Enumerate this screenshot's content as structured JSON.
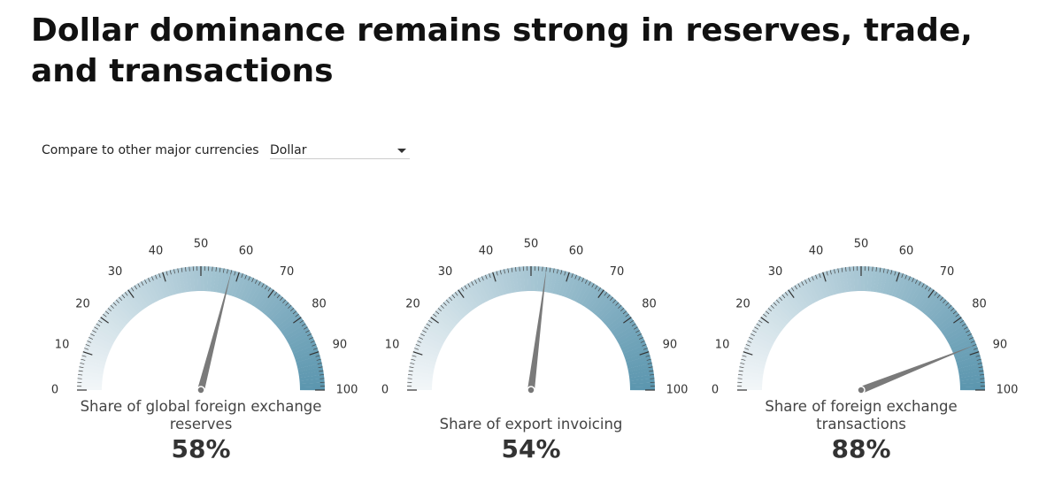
{
  "title": "Dollar dominance remains strong in reserves, trade, and transactions",
  "filter": {
    "label": "Compare to other major currencies",
    "value": "Dollar"
  },
  "chart_data": [
    {
      "type": "gauge",
      "title": "Share of global foreign exchange reserves",
      "values": [
        58
      ],
      "value_labels": [
        "58%"
      ],
      "ylim": [
        0,
        100
      ],
      "yticks": [
        0,
        10,
        20,
        30,
        40,
        50,
        60,
        70,
        80,
        90,
        100
      ],
      "color": "#5a95ae"
    },
    {
      "type": "gauge",
      "title": "Share of export invoicing",
      "values": [
        54
      ],
      "value_labels": [
        "54%"
      ],
      "ylim": [
        0,
        100
      ],
      "yticks": [
        0,
        10,
        20,
        30,
        40,
        50,
        60,
        70,
        80,
        90,
        100
      ],
      "color": "#5a95ae"
    },
    {
      "type": "gauge",
      "title": "Share of foreign exchange transactions",
      "values": [
        88
      ],
      "value_labels": [
        "88%"
      ],
      "ylim": [
        0,
        100
      ],
      "yticks": [
        0,
        10,
        20,
        30,
        40,
        50,
        60,
        70,
        80,
        90,
        100
      ],
      "color": "#5a95ae"
    }
  ]
}
